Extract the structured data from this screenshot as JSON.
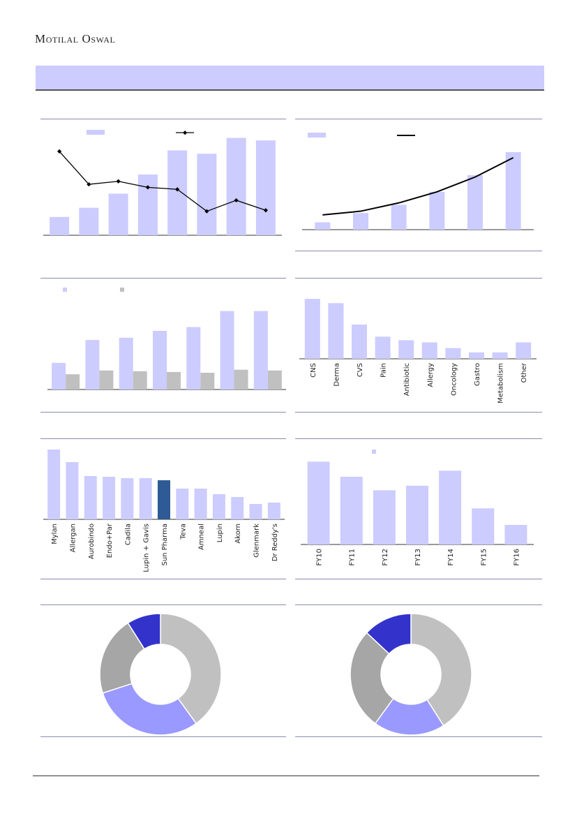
{
  "brand": "Motilal Oswal",
  "colors": {
    "bar": "#ccccff",
    "bar_grey": "#c0c0c0",
    "highlight": "#2e5b96",
    "line": "#000000",
    "donut": [
      "#c0c0c0",
      "#9999ff",
      "#a6a6a6",
      "#3333cc"
    ]
  },
  "chart_data": [
    {
      "id": "c1",
      "type": "bar+line",
      "series": [
        {
          "kind": "bar",
          "values": [
            22,
            33,
            50,
            73,
            102,
            98,
            117,
            114
          ]
        },
        {
          "kind": "line",
          "values": [
            84,
            51,
            54,
            48,
            46,
            24,
            35,
            25
          ]
        }
      ]
    },
    {
      "id": "c2",
      "type": "bar+line",
      "series": [
        {
          "kind": "bar",
          "values": [
            8,
            18,
            27,
            41,
            59,
            84
          ]
        },
        {
          "kind": "line",
          "values": [
            16,
            20,
            29,
            41,
            57,
            78
          ]
        }
      ]
    },
    {
      "id": "c3",
      "type": "bar",
      "series": [
        {
          "kind": "bar",
          "values": [
            35,
            65,
            68,
            77,
            82,
            103,
            103
          ]
        },
        {
          "kind": "bar",
          "values": [
            20,
            25,
            24,
            23,
            22,
            26,
            25
          ]
        }
      ]
    },
    {
      "id": "c4",
      "type": "bar",
      "categories": [
        "CNS",
        "Derma",
        "CVS",
        "Pain",
        "Antibiotic",
        "Allergy",
        "Oncology",
        "Gastro",
        "Metabolism",
        "Other"
      ],
      "values": [
        84,
        78,
        48,
        31,
        26,
        23,
        15,
        9,
        9,
        23
      ]
    },
    {
      "id": "c5",
      "type": "bar",
      "categories": [
        "Mylan",
        "Allergan",
        "Aurobindo",
        "Endo+Par",
        "Cadila",
        "Lupin + Gavis",
        "Sun Pharma",
        "Teva",
        "Amneal",
        "Lupin",
        "Akorn",
        "Glenmark",
        "Dr Reddy's"
      ],
      "values": [
        100,
        82,
        62,
        61,
        59,
        59,
        56,
        44,
        44,
        36,
        32,
        22,
        24
      ],
      "highlight": "Sun Pharma"
    },
    {
      "id": "c6",
      "type": "bar",
      "categories": [
        "FY10",
        "FY11",
        "FY12",
        "FY13",
        "FY14",
        "FY15",
        "FY16"
      ],
      "values": [
        110,
        90,
        72,
        78,
        98,
        48,
        26
      ]
    },
    {
      "id": "c7",
      "type": "pie",
      "values": [
        40,
        30,
        21,
        9
      ]
    },
    {
      "id": "c8",
      "type": "pie",
      "values": [
        41,
        19,
        27,
        13
      ]
    }
  ]
}
